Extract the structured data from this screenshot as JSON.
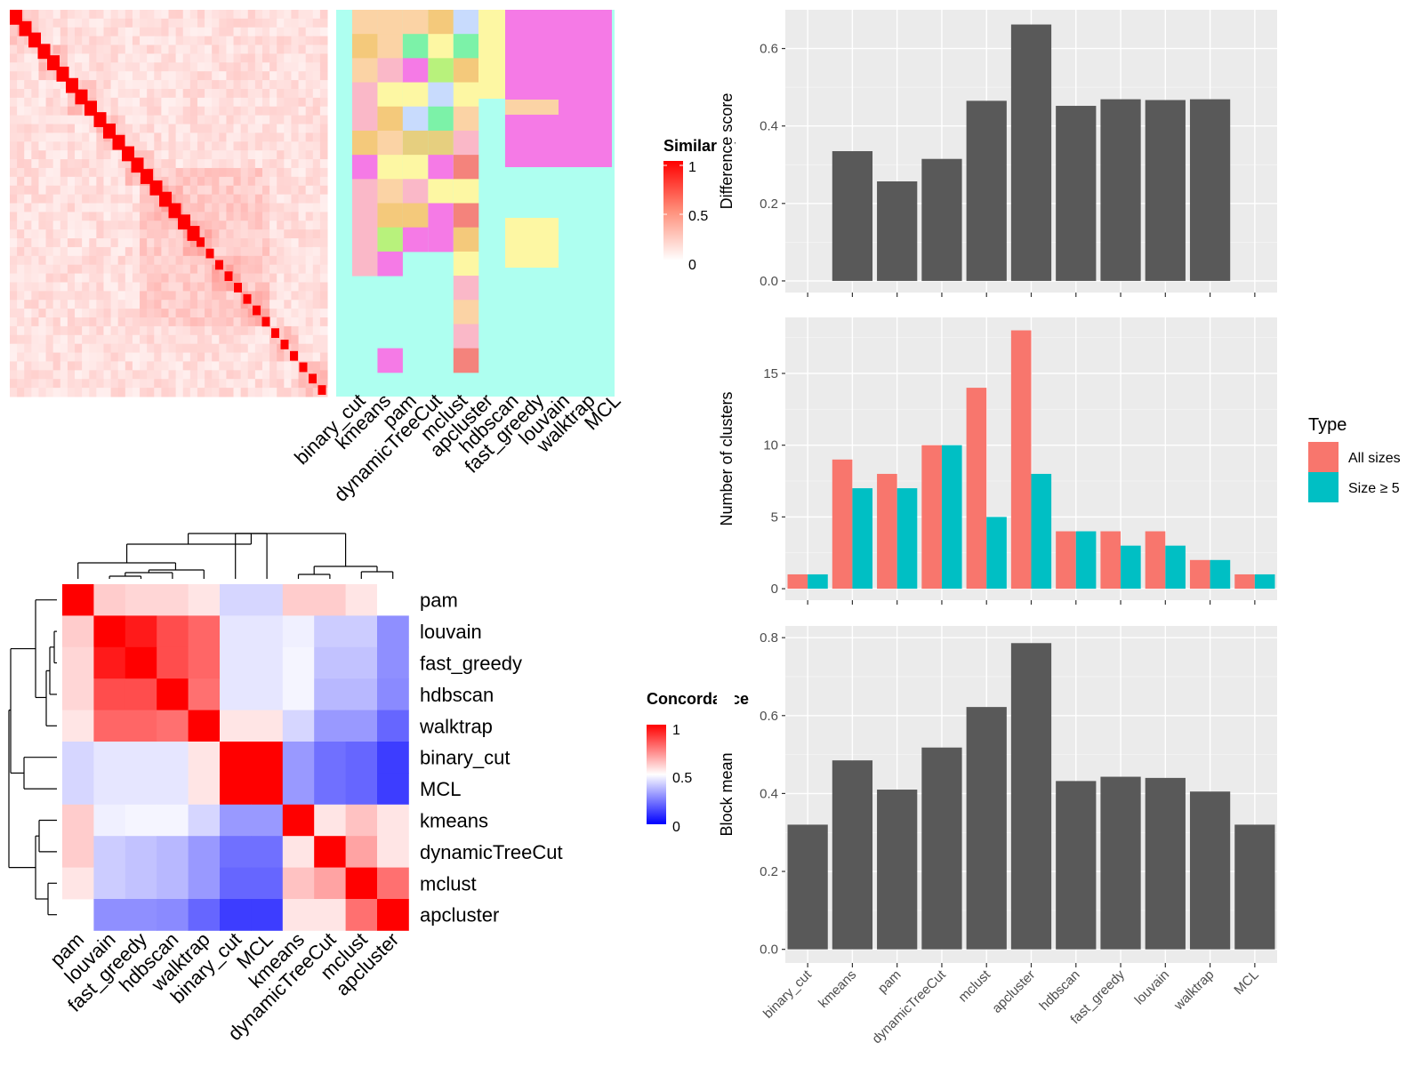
{
  "methods_order_ggplot": [
    "binary_cut",
    "kmeans",
    "pam",
    "dynamicTreeCut",
    "mclust",
    "apcluster",
    "hdbscan",
    "fast_greedy",
    "louvain",
    "walktrap",
    "MCL"
  ],
  "top_left": {
    "annotation_columns": [
      "binary_cut",
      "kmeans",
      "pam",
      "dynamicTreeCut",
      "mclust",
      "apcluster",
      "hdbscan",
      "fast_greedy",
      "louvain",
      "walktrap",
      "MCL"
    ],
    "legend": {
      "title": "Similarity",
      "ticks": [
        "1",
        "0.5",
        "0"
      ]
    }
  },
  "bottom_left": {
    "row_labels": [
      "pam",
      "louvain",
      "fast_greedy",
      "hdbscan",
      "walktrap",
      "binary_cut",
      "MCL",
      "kmeans",
      "dynamicTreeCut",
      "mclust",
      "apcluster"
    ],
    "col_labels": [
      "pam",
      "louvain",
      "fast_greedy",
      "hdbscan",
      "walktrap",
      "binary_cut",
      "MCL",
      "kmeans",
      "dynamicTreeCut",
      "mclust",
      "apcluster"
    ],
    "legend": {
      "title": "Concordance",
      "ticks": [
        "1",
        "0.5",
        "0"
      ]
    },
    "colors": {
      "high": "#ff0000",
      "mid": "#ffffff",
      "low": "#0000ff"
    }
  },
  "chart_data": [
    {
      "type": "bar",
      "categories": [
        "binary_cut",
        "kmeans",
        "pam",
        "dynamicTreeCut",
        "mclust",
        "apcluster",
        "hdbscan",
        "fast_greedy",
        "louvain",
        "walktrap",
        "MCL"
      ],
      "values": [
        0.0,
        0.335,
        0.257,
        0.315,
        0.465,
        0.662,
        0.452,
        0.469,
        0.467,
        0.469,
        0.0
      ],
      "ylabel": "Difference score",
      "ylim": [
        -0.03,
        0.7
      ],
      "yticks": [
        "0.0",
        "0.2",
        "0.4",
        "0.6"
      ],
      "bar_color": "#595959"
    },
    {
      "type": "bar",
      "categories": [
        "binary_cut",
        "kmeans",
        "pam",
        "dynamicTreeCut",
        "mclust",
        "apcluster",
        "hdbscan",
        "fast_greedy",
        "louvain",
        "walktrap",
        "MCL"
      ],
      "series": [
        {
          "name": "All sizes",
          "color": "#F8766D",
          "values": [
            1,
            9,
            8,
            10,
            14,
            18,
            4,
            4,
            4,
            2,
            1
          ]
        },
        {
          "name": "Size ≥ 5",
          "color": "#00BFC4",
          "values": [
            1,
            7,
            7,
            10,
            5,
            8,
            4,
            3,
            3,
            2,
            1
          ]
        }
      ],
      "ylabel": "Number of clusters",
      "ylim": [
        -0.8,
        18.9
      ],
      "yticks": [
        "0",
        "5",
        "10",
        "15"
      ],
      "legend": {
        "title": "Type",
        "position": "right"
      }
    },
    {
      "type": "bar",
      "categories": [
        "binary_cut",
        "kmeans",
        "pam",
        "dynamicTreeCut",
        "mclust",
        "apcluster",
        "hdbscan",
        "fast_greedy",
        "louvain",
        "walktrap",
        "MCL"
      ],
      "values": [
        0.32,
        0.485,
        0.41,
        0.518,
        0.622,
        0.786,
        0.432,
        0.443,
        0.44,
        0.405,
        0.32
      ],
      "ylabel": "Block mean",
      "ylim": [
        -0.035,
        0.83
      ],
      "yticks": [
        "0.0",
        "0.2",
        "0.4",
        "0.6",
        "0.8"
      ],
      "bar_color": "#595959"
    }
  ]
}
